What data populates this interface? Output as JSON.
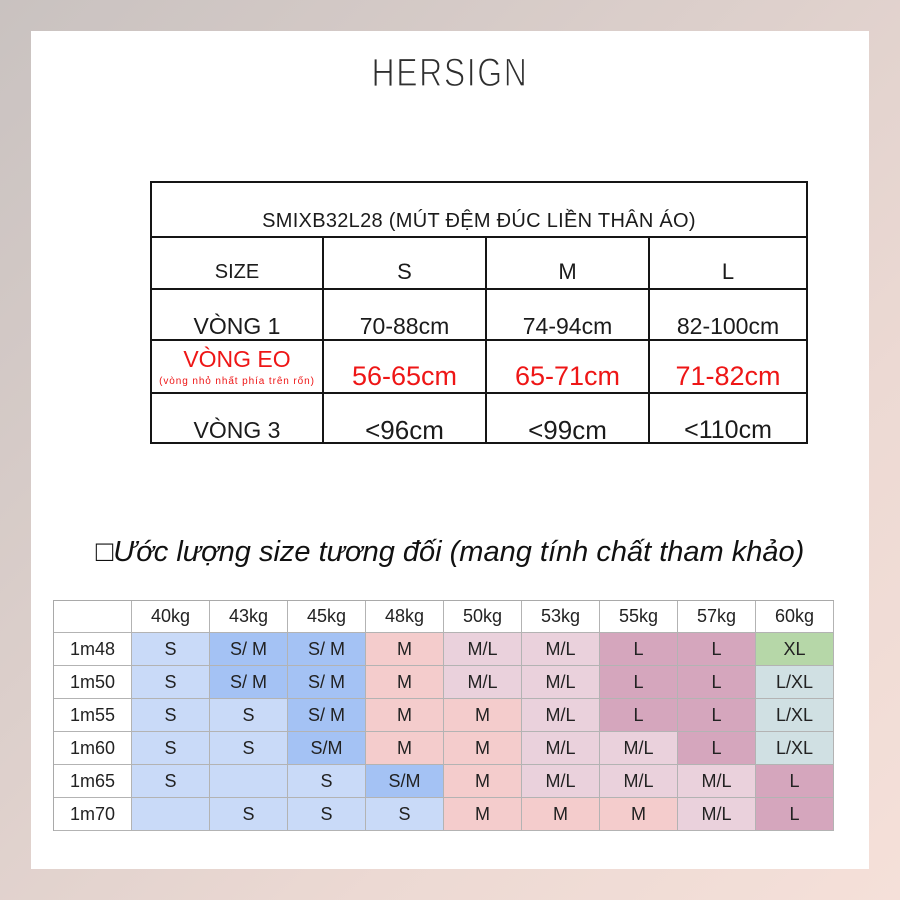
{
  "brand": {
    "logo": "HERSIGN"
  },
  "size_table": {
    "title": "SMIXB32L28 (MÚT ĐỆM ĐÚC LIỀN THÂN ÁO)",
    "size_label": "SIZE",
    "sizes": [
      "S",
      "M",
      "L"
    ],
    "rows": [
      {
        "label": "VÒNG 1",
        "values": [
          "70-88cm",
          "74-94cm",
          "82-100cm"
        ]
      },
      {
        "label": "VÒNG EO",
        "note": "(vòng nhỏ nhất phía trên rốn)",
        "values": [
          "56-65cm",
          "65-71cm",
          "71-82cm"
        ]
      },
      {
        "label": "VÒNG 3",
        "values": [
          "<96cm",
          "<99cm",
          "<110cm"
        ]
      }
    ],
    "highlight_color": "#ee1616"
  },
  "estimate": {
    "heading": "□Ước lượng size tương đối (mang tính chất tham khảo)",
    "weights": [
      "40kg",
      "43kg",
      "45kg",
      "48kg",
      "50kg",
      "53kg",
      "55kg",
      "57kg",
      "60kg"
    ],
    "rows": [
      {
        "height": "1m48",
        "cells": [
          {
            "text": "S",
            "bg": "#c9daf8"
          },
          {
            "text": "S/ M",
            "bg": "#a4c2f4"
          },
          {
            "text": "S/ M",
            "bg": "#a4c2f4"
          },
          {
            "text": "M",
            "bg": "#f4cccc"
          },
          {
            "text": "M/L",
            "bg": "#ead1dc"
          },
          {
            "text": "M/L",
            "bg": "#ead1dc"
          },
          {
            "text": "L",
            "bg": "#d5a6bd"
          },
          {
            "text": "L",
            "bg": "#d5a6bd"
          },
          {
            "text": "XL",
            "bg": "#b6d7a8"
          }
        ]
      },
      {
        "height": "1m50",
        "cells": [
          {
            "text": "S",
            "bg": "#c9daf8"
          },
          {
            "text": "S/ M",
            "bg": "#a4c2f4"
          },
          {
            "text": "S/ M",
            "bg": "#a4c2f4"
          },
          {
            "text": "M",
            "bg": "#f4cccc"
          },
          {
            "text": "M/L",
            "bg": "#ead1dc"
          },
          {
            "text": "M/L",
            "bg": "#ead1dc"
          },
          {
            "text": "L",
            "bg": "#d5a6bd"
          },
          {
            "text": "L",
            "bg": "#d5a6bd"
          },
          {
            "text": "L/XL",
            "bg": "#d0e0e3"
          }
        ]
      },
      {
        "height": "1m55",
        "cells": [
          {
            "text": "S",
            "bg": "#c9daf8"
          },
          {
            "text": "S",
            "bg": "#c9daf8"
          },
          {
            "text": "S/ M",
            "bg": "#a4c2f4"
          },
          {
            "text": "M",
            "bg": "#f4cccc"
          },
          {
            "text": "M",
            "bg": "#f4cccc"
          },
          {
            "text": "M/L",
            "bg": "#ead1dc"
          },
          {
            "text": "L",
            "bg": "#d5a6bd"
          },
          {
            "text": "L",
            "bg": "#d5a6bd"
          },
          {
            "text": "L/XL",
            "bg": "#d0e0e3"
          }
        ]
      },
      {
        "height": "1m60",
        "cells": [
          {
            "text": "S",
            "bg": "#c9daf8"
          },
          {
            "text": "S",
            "bg": "#c9daf8"
          },
          {
            "text": "S/M",
            "bg": "#a4c2f4"
          },
          {
            "text": "M",
            "bg": "#f4cccc"
          },
          {
            "text": "M",
            "bg": "#f4cccc"
          },
          {
            "text": "M/L",
            "bg": "#ead1dc"
          },
          {
            "text": "M/L",
            "bg": "#ead1dc"
          },
          {
            "text": "L",
            "bg": "#d5a6bd"
          },
          {
            "text": "L/XL",
            "bg": "#d0e0e3"
          }
        ]
      },
      {
        "height": "1m65",
        "cells": [
          {
            "text": "S",
            "bg": "#c9daf8"
          },
          {
            "text": "",
            "bg": "#c9daf8"
          },
          {
            "text": "S",
            "bg": "#c9daf8"
          },
          {
            "text": "S/M",
            "bg": "#a4c2f4"
          },
          {
            "text": "M",
            "bg": "#f4cccc"
          },
          {
            "text": "M/L",
            "bg": "#ead1dc"
          },
          {
            "text": "M/L",
            "bg": "#ead1dc"
          },
          {
            "text": "M/L",
            "bg": "#ead1dc"
          },
          {
            "text": "L",
            "bg": "#d5a6bd"
          }
        ]
      },
      {
        "height": "1m70",
        "cells": [
          {
            "text": "",
            "bg": "#c9daf8"
          },
          {
            "text": "S",
            "bg": "#c9daf8"
          },
          {
            "text": "S",
            "bg": "#c9daf8"
          },
          {
            "text": "S",
            "bg": "#c9daf8"
          },
          {
            "text": "M",
            "bg": "#f4cccc"
          },
          {
            "text": "M",
            "bg": "#f4cccc"
          },
          {
            "text": "M",
            "bg": "#f4cccc"
          },
          {
            "text": "M/L",
            "bg": "#ead1dc"
          },
          {
            "text": "L",
            "bg": "#d5a6bd"
          }
        ]
      }
    ]
  }
}
